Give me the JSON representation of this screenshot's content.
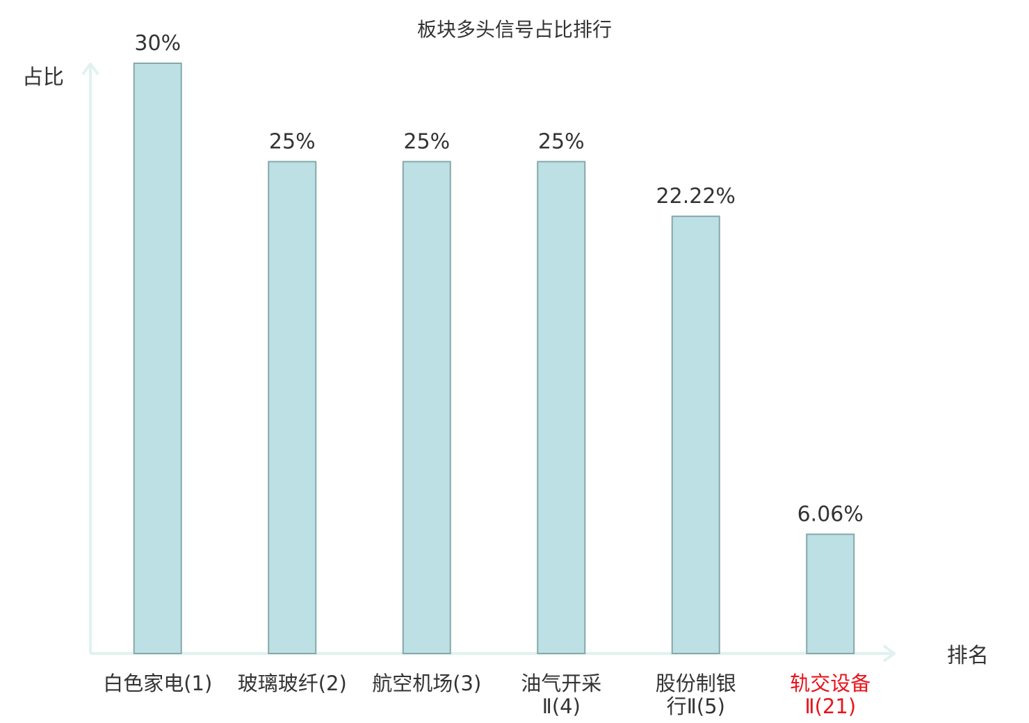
{
  "chart_data": {
    "type": "bar",
    "title": "板块多头信号占比排行",
    "ylabel": "占比",
    "xlabel": "排名",
    "ylim": [
      0,
      30
    ],
    "categories": [
      {
        "lines": [
          "白色家电(1)"
        ],
        "highlight": false
      },
      {
        "lines": [
          "玻璃玻纤(2)"
        ],
        "highlight": false
      },
      {
        "lines": [
          "航空机场(3)"
        ],
        "highlight": false
      },
      {
        "lines": [
          "油气开采",
          "Ⅱ(4)"
        ],
        "highlight": false
      },
      {
        "lines": [
          "股份制银",
          "行Ⅱ(5)"
        ],
        "highlight": false
      },
      {
        "lines": [
          "轨交设备",
          "Ⅱ(21)"
        ],
        "highlight": true
      }
    ],
    "values": [
      30,
      25,
      25,
      25,
      22.22,
      6.06
    ],
    "value_labels": [
      "30%",
      "25%",
      "25%",
      "25%",
      "22.22%",
      "6.06%"
    ],
    "grid": false,
    "colors": {
      "bar_fill": "#bce0e3",
      "bar_stroke": "#85a7aa",
      "axis": "#dff2ef",
      "text": "#333333",
      "highlight_text": "#e8141e"
    }
  }
}
